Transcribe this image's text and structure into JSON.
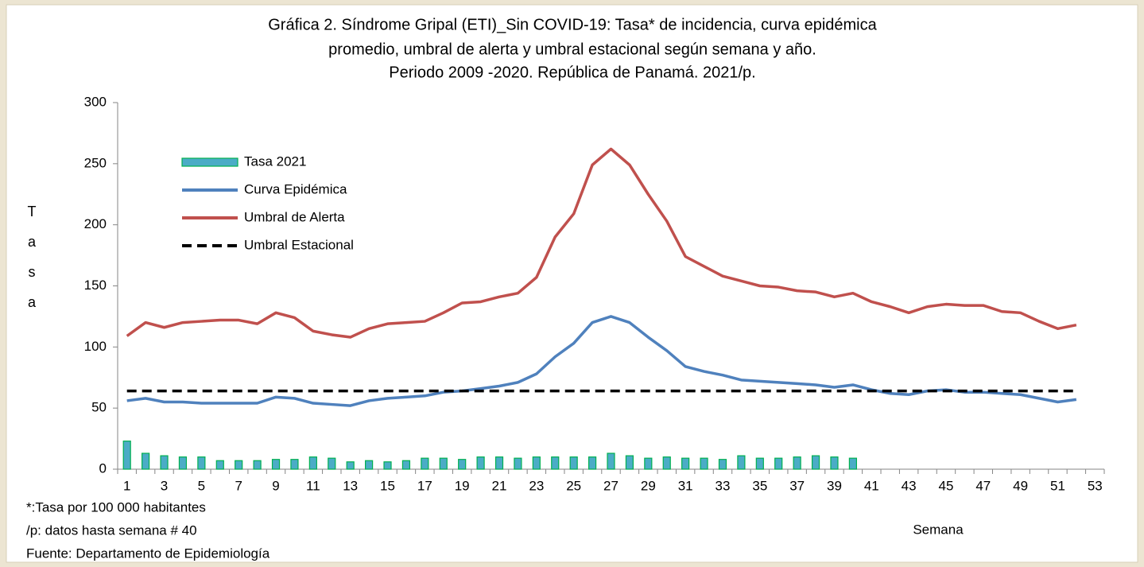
{
  "chart_data": {
    "type": "bar-line",
    "title": [
      "Gráfica 2. Síndrome Gripal (ETI)_Sin COVID-19: Tasa* de incidencia, curva epidémica",
      "promedio, umbral de alerta y umbral estacional según semana y año.",
      "Periodo 2009 -2020.  República de Panamá. 2021/p."
    ],
    "y_label": "Tasa",
    "x_label": "Semana",
    "notes": [
      "*:Tasa por 100 000 habitantes",
      "/p: datos hasta semana # 40",
      "Fuente: Departamento de Epidemiología"
    ],
    "categories": [
      1,
      null,
      3,
      null,
      5,
      null,
      7,
      null,
      9,
      null,
      11,
      null,
      13,
      null,
      15,
      null,
      17,
      null,
      19,
      null,
      21,
      null,
      23,
      null,
      25,
      null,
      27,
      null,
      29,
      null,
      31,
      null,
      33,
      null,
      35,
      null,
      37,
      null,
      39,
      null,
      41,
      null,
      43,
      null,
      45,
      null,
      47,
      null,
      49,
      null,
      51,
      null,
      53
    ],
    "ylim": [
      0,
      300
    ],
    "yticks": [
      0,
      50,
      100,
      150,
      200,
      250,
      300
    ],
    "legend": "upper left",
    "series": [
      {
        "name": "Tasa 2021",
        "kind": "bar",
        "color": "#4bacc6",
        "edge": "#00b050",
        "values": [
          23,
          13,
          11,
          10,
          10,
          7,
          7,
          7,
          8,
          8,
          10,
          9,
          6,
          7,
          6,
          7,
          9,
          9,
          8,
          10,
          10,
          9,
          10,
          10,
          10,
          10,
          13,
          11,
          9,
          10,
          9,
          9,
          8,
          11,
          9,
          9,
          10,
          11,
          10,
          9,
          null,
          null,
          null,
          null,
          null,
          null,
          null,
          null,
          null,
          null,
          null,
          null,
          null
        ]
      },
      {
        "name": "Curva Epidémica",
        "kind": "line",
        "color": "#4f81bd",
        "values": [
          56,
          58,
          55,
          55,
          54,
          54,
          54,
          54,
          59,
          58,
          54,
          53,
          52,
          56,
          58,
          59,
          60,
          63,
          64,
          66,
          68,
          71,
          78,
          92,
          103,
          120,
          125,
          120,
          108,
          97,
          84,
          80,
          77,
          73,
          72,
          71,
          70,
          69,
          67,
          69,
          65,
          62,
          61,
          64,
          65,
          63,
          63,
          62,
          61,
          58,
          55,
          57,
          null
        ]
      },
      {
        "name": "Umbral de Alerta",
        "kind": "line",
        "color": "#c0504d",
        "values": [
          109,
          120,
          116,
          120,
          121,
          122,
          122,
          119,
          128,
          124,
          113,
          110,
          108,
          115,
          119,
          120,
          121,
          128,
          136,
          137,
          141,
          144,
          157,
          190,
          209,
          249,
          262,
          249,
          225,
          203,
          174,
          166,
          158,
          154,
          150,
          149,
          146,
          145,
          141,
          144,
          137,
          133,
          128,
          133,
          135,
          134,
          134,
          129,
          128,
          121,
          115,
          118,
          null
        ]
      },
      {
        "name": "Umbral Estacional",
        "kind": "line",
        "color": "#000000",
        "dashed": true,
        "values": [
          64,
          64,
          64,
          64,
          64,
          64,
          64,
          64,
          64,
          64,
          64,
          64,
          64,
          64,
          64,
          64,
          64,
          64,
          64,
          64,
          64,
          64,
          64,
          64,
          64,
          64,
          64,
          64,
          64,
          64,
          64,
          64,
          64,
          64,
          64,
          64,
          64,
          64,
          64,
          64,
          64,
          64,
          64,
          64,
          64,
          64,
          64,
          64,
          64,
          64,
          64,
          64,
          null
        ]
      }
    ]
  }
}
